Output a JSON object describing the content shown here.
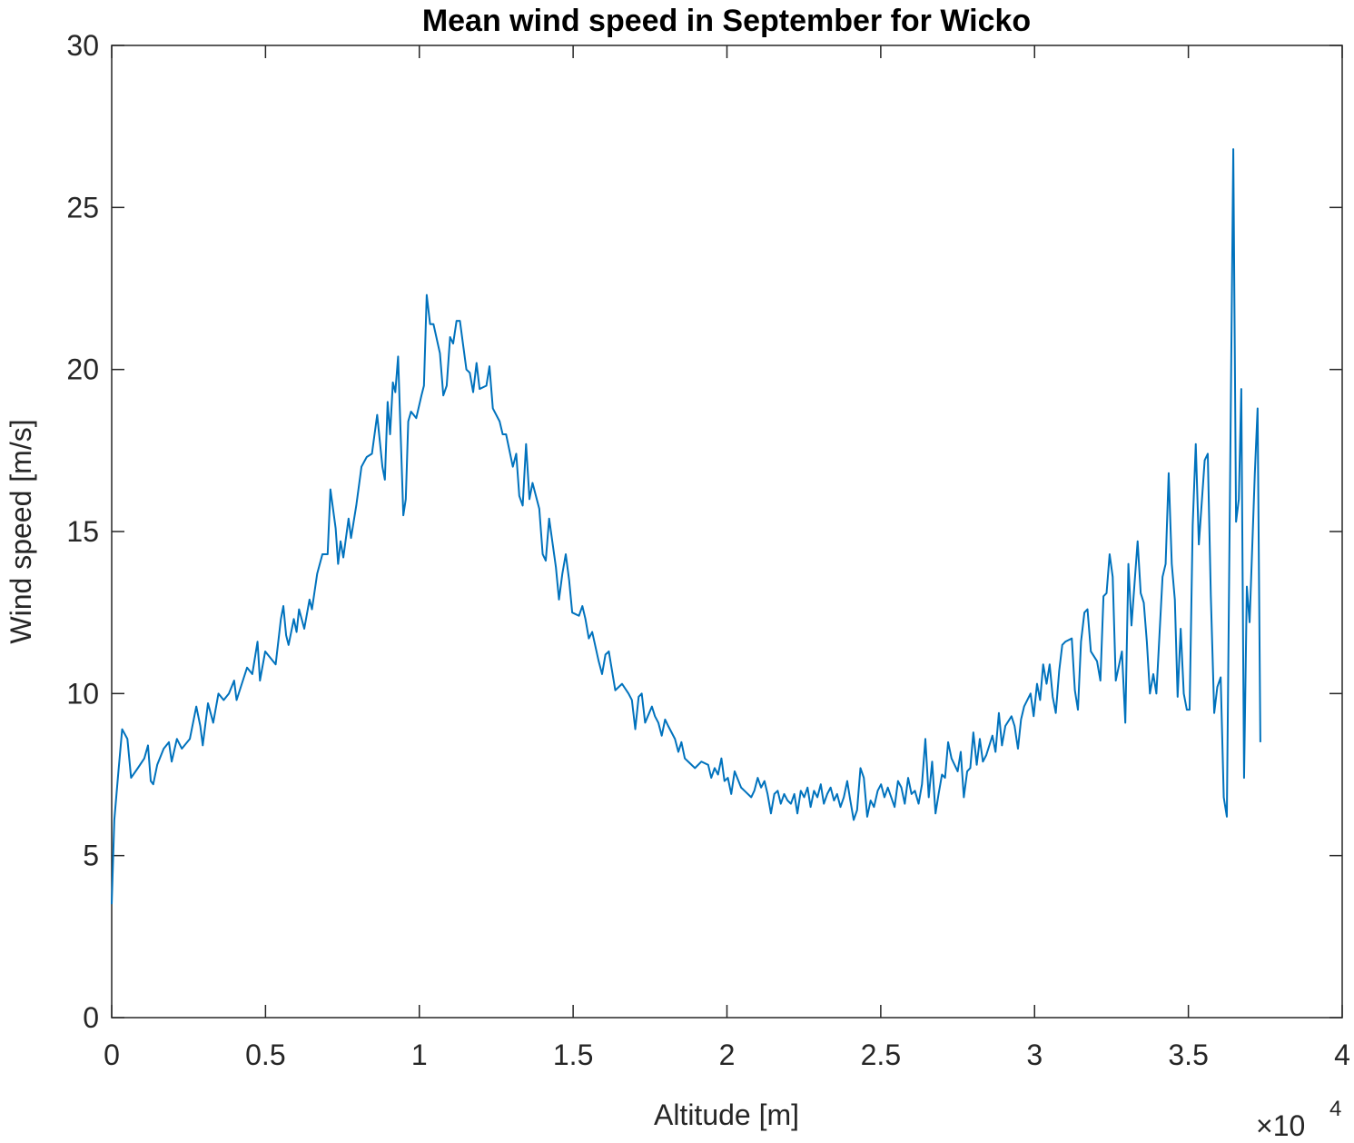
{
  "chart_data": {
    "type": "line",
    "title": "Mean wind speed in September for Wicko",
    "x_label": "Altitude [m]",
    "y_label": "Wind speed [m/s]",
    "x_multiplier": "×10",
    "x_multiplier_exponent": "4",
    "xlim": [
      0,
      40000
    ],
    "xticks": [
      0,
      {
        "value": 5000,
        "label": "0.5"
      },
      {
        "value": 10000,
        "label": "1"
      },
      {
        "value": 15000,
        "label": "1.5"
      },
      {
        "value": 20000,
        "label": "2"
      },
      {
        "value": 25000,
        "label": "2.5"
      },
      {
        "value": 30000,
        "label": "3"
      },
      {
        "value": 35000,
        "label": "3.5"
      },
      {
        "value": 40000,
        "label": "4"
      }
    ],
    "ylim": [
      0,
      30
    ],
    "yticks": [
      0,
      5,
      10,
      15,
      20,
      25,
      30
    ],
    "grid": false,
    "box": true,
    "x": [
      0,
      85,
      210,
      340,
      510,
      630,
      850,
      1060,
      1180,
      1270,
      1350,
      1480,
      1690,
      1860,
      1950,
      2120,
      2280,
      2540,
      2750,
      2880,
      2960,
      3130,
      3300,
      3470,
      3640,
      3810,
      3980,
      4060,
      4230,
      4400,
      4570,
      4740,
      4820,
      4990,
      5160,
      5330,
      5500,
      5580,
      5670,
      5750,
      5920,
      6010,
      6090,
      6260,
      6430,
      6510,
      6680,
      6850,
      7020,
      7110,
      7280,
      7360,
      7440,
      7530,
      7700,
      7780,
      7950,
      8120,
      8290,
      8460,
      8630,
      8800,
      8880,
      8970,
      9050,
      9140,
      9220,
      9310,
      9480,
      9560,
      9640,
      9730,
      9900,
      10070,
      10150,
      10240,
      10350,
      10460,
      10670,
      10780,
      10890,
      11000,
      11100,
      11210,
      11320,
      11530,
      11640,
      11750,
      11860,
      11960,
      12180,
      12280,
      12390,
      12610,
      12710,
      12820,
      13040,
      13150,
      13250,
      13360,
      13470,
      13580,
      13680,
      13900,
      14010,
      14110,
      14220,
      14440,
      14540,
      14650,
      14760,
      14870,
      14970,
      15190,
      15300,
      15400,
      15510,
      15620,
      15830,
      15940,
      16050,
      16160,
      16370,
      16590,
      16800,
      16910,
      17020,
      17130,
      17230,
      17340,
      17560,
      17660,
      17770,
      17880,
      17990,
      18090,
      18310,
      18420,
      18520,
      18630,
      18740,
      18960,
      19170,
      19390,
      19490,
      19600,
      19710,
      19820,
      19920,
      20030,
      20140,
      20250,
      20460,
      20570,
      20790,
      20890,
      21000,
      21110,
      21220,
      21320,
      21430,
      21540,
      21650,
      21750,
      21860,
      21970,
      22080,
      22190,
      22290,
      22400,
      22510,
      22620,
      22720,
      22830,
      22940,
      23050,
      23150,
      23260,
      23370,
      23480,
      23580,
      23690,
      23800,
      23910,
      24010,
      24120,
      24230,
      24340,
      24450,
      24560,
      24670,
      24780,
      24900,
      25010,
      25120,
      25230,
      25450,
      25560,
      25670,
      25780,
      25890,
      26000,
      26110,
      26230,
      26340,
      26450,
      26560,
      26670,
      26780,
      26880,
      26990,
      27090,
      27190,
      27300,
      27500,
      27600,
      27700,
      27810,
      27910,
      28010,
      28120,
      28220,
      28320,
      28430,
      28630,
      28730,
      28840,
      28940,
      29050,
      29250,
      29350,
      29460,
      29560,
      29660,
      29870,
      29970,
      30080,
      30180,
      30280,
      30390,
      30490,
      30590,
      30690,
      30800,
      30900,
      31000,
      31210,
      31310,
      31410,
      31510,
      31620,
      31720,
      31830,
      32030,
      32140,
      32240,
      32340,
      32440,
      32540,
      32640,
      32840,
      32950,
      33050,
      33150,
      33350,
      33450,
      33550,
      33650,
      33750,
      33860,
      33960,
      34160,
      34260,
      34360,
      34460,
      34560,
      34650,
      34750,
      34850,
      34950,
      35040,
      35140,
      35240,
      35340,
      35530,
      35630,
      35730,
      35840,
      35940,
      36050,
      36150,
      36250,
      36460,
      36550,
      36640,
      36720,
      36810,
      36900,
      36990,
      37160,
      37250,
      37340
    ],
    "series": [
      {
        "color": "#0072bd",
        "values": [
          3.5,
          6.1,
          7.5,
          8.9,
          8.6,
          7.4,
          7.7,
          8.0,
          8.4,
          7.3,
          7.2,
          7.8,
          8.3,
          8.5,
          7.9,
          8.6,
          8.3,
          8.6,
          9.6,
          9.0,
          8.4,
          9.7,
          9.1,
          10.0,
          9.8,
          10.0,
          10.4,
          9.8,
          10.3,
          10.8,
          10.6,
          11.6,
          10.4,
          11.3,
          11.1,
          10.9,
          12.3,
          12.7,
          11.8,
          11.5,
          12.3,
          11.9,
          12.6,
          12.0,
          12.9,
          12.6,
          13.7,
          14.3,
          14.3,
          16.3,
          15.1,
          14.0,
          14.7,
          14.2,
          15.4,
          14.8,
          15.8,
          17.0,
          17.3,
          17.4,
          18.6,
          17.0,
          16.6,
          19.0,
          18.0,
          19.6,
          19.3,
          20.4,
          15.5,
          16.0,
          18.4,
          18.7,
          18.5,
          19.2,
          19.5,
          22.3,
          21.4,
          21.4,
          20.5,
          19.2,
          19.5,
          21.0,
          20.8,
          21.5,
          21.5,
          20.0,
          19.9,
          19.3,
          20.2,
          19.4,
          19.5,
          20.1,
          18.8,
          18.4,
          18.0,
          18.0,
          17.0,
          17.4,
          16.1,
          15.8,
          17.7,
          16.0,
          16.5,
          15.7,
          14.3,
          14.1,
          15.4,
          13.9,
          12.9,
          13.7,
          14.3,
          13.5,
          12.5,
          12.4,
          12.7,
          12.3,
          11.7,
          11.9,
          11.0,
          10.6,
          11.2,
          11.3,
          10.1,
          10.3,
          10.0,
          9.8,
          8.9,
          9.9,
          10.0,
          9.1,
          9.6,
          9.3,
          9.1,
          8.7,
          9.2,
          9.0,
          8.6,
          8.2,
          8.5,
          8.0,
          7.9,
          7.7,
          7.9,
          7.8,
          7.4,
          7.7,
          7.5,
          8.0,
          7.3,
          7.4,
          6.9,
          7.6,
          7.1,
          7.0,
          6.8,
          7.0,
          7.4,
          7.1,
          7.3,
          6.9,
          6.3,
          6.9,
          7.0,
          6.6,
          6.9,
          6.7,
          6.6,
          6.9,
          6.3,
          7.0,
          6.8,
          7.1,
          6.5,
          7.0,
          6.8,
          7.2,
          6.6,
          6.9,
          7.1,
          6.7,
          6.9,
          6.5,
          6.8,
          7.3,
          6.7,
          6.1,
          6.4,
          7.7,
          7.4,
          6.2,
          6.7,
          6.5,
          7.0,
          7.2,
          6.8,
          7.1,
          6.5,
          7.3,
          7.1,
          6.6,
          7.4,
          6.9,
          7.0,
          6.6,
          7.2,
          8.6,
          6.8,
          7.9,
          6.3,
          6.9,
          7.5,
          7.4,
          8.5,
          8.0,
          7.6,
          8.2,
          6.8,
          7.6,
          7.7,
          8.8,
          7.8,
          8.6,
          7.9,
          8.1,
          8.7,
          8.2,
          9.4,
          8.4,
          9.0,
          9.3,
          9.0,
          8.3,
          9.2,
          9.6,
          10.0,
          9.3,
          10.3,
          9.8,
          10.9,
          10.3,
          10.9,
          9.9,
          9.4,
          10.7,
          11.5,
          11.6,
          11.7,
          10.1,
          9.5,
          11.6,
          12.5,
          12.6,
          11.3,
          11.0,
          10.4,
          13.0,
          13.1,
          14.3,
          13.6,
          10.4,
          11.3,
          9.1,
          14.0,
          12.1,
          14.7,
          13.1,
          12.8,
          11.6,
          10.0,
          10.6,
          10.0,
          13.6,
          14.0,
          16.8,
          14.0,
          12.9,
          9.9,
          12.0,
          10.0,
          9.5,
          9.5,
          15.2,
          17.7,
          14.6,
          17.2,
          17.4,
          13.0,
          9.4,
          10.2,
          10.5,
          6.8,
          6.2,
          26.8,
          15.3,
          16.0,
          19.4,
          7.4,
          13.3,
          12.2,
          16.8,
          18.8,
          8.5
        ]
      }
    ]
  }
}
